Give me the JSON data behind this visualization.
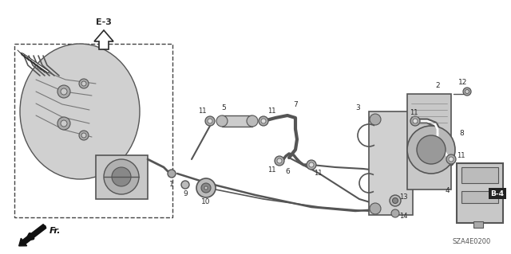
{
  "bg_color": "#ffffff",
  "diagram_code": "SZA4E0200",
  "e3_label": "E-3",
  "b4_label": "B-4",
  "fr_label": "Fr.",
  "dark": "#2a2a2a",
  "gray": "#888888",
  "lgray": "#bbbbbb",
  "dgray": "#555555"
}
